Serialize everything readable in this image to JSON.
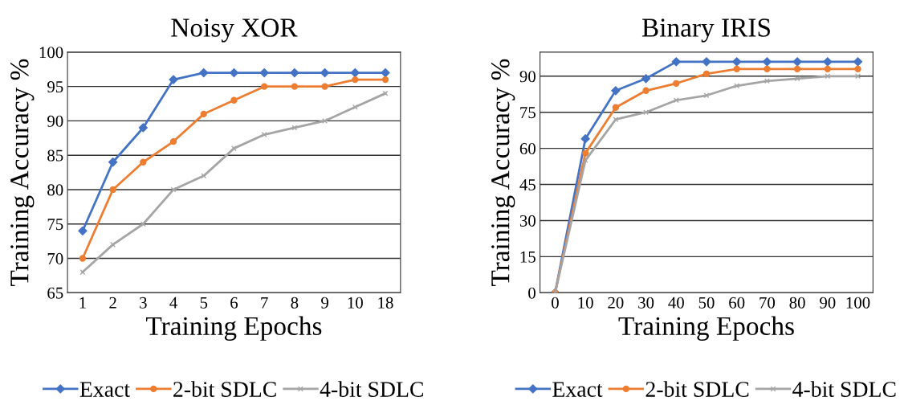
{
  "chart_data": [
    {
      "type": "line",
      "title": "Noisy XOR",
      "xlabel": "Training Epochs",
      "ylabel": "Training Accuracy %",
      "categories": [
        "1",
        "2",
        "3",
        "4",
        "5",
        "6",
        "7",
        "8",
        "9",
        "10",
        "18"
      ],
      "ylim": [
        65,
        100
      ],
      "yticks": [
        65,
        70,
        75,
        80,
        85,
        90,
        95,
        100
      ],
      "grid": "y",
      "legend": "bottom",
      "series": [
        {
          "name": "Exact",
          "color": "#4472c4",
          "marker": "diamond",
          "values": [
            74,
            84,
            89,
            96,
            97,
            97,
            97,
            97,
            97,
            97,
            97
          ]
        },
        {
          "name": "2-bit SDLC",
          "color": "#ed7d31",
          "marker": "circle",
          "values": [
            70,
            80,
            84,
            87,
            91,
            93,
            95,
            95,
            95,
            96,
            96
          ]
        },
        {
          "name": "4-bit SDLC",
          "color": "#a5a5a5",
          "marker": "cross",
          "values": [
            68,
            72,
            75,
            80,
            82,
            86,
            88,
            89,
            90,
            92,
            94
          ]
        }
      ]
    },
    {
      "type": "line",
      "title": "Binary IRIS",
      "xlabel": "Training Epochs",
      "ylabel": "Training Accuracy %",
      "categories": [
        "0",
        "10",
        "20",
        "30",
        "40",
        "50",
        "60",
        "70",
        "80",
        "90",
        "100"
      ],
      "ylim": [
        0,
        100
      ],
      "yticks": [
        0,
        15,
        30,
        45,
        60,
        75,
        90
      ],
      "grid": "y",
      "legend": "bottom",
      "series": [
        {
          "name": "Exact",
          "color": "#4472c4",
          "marker": "diamond",
          "values": [
            0,
            64,
            84,
            89,
            96,
            96,
            96,
            96,
            96,
            96,
            96
          ]
        },
        {
          "name": "2-bit SDLC",
          "color": "#ed7d31",
          "marker": "circle",
          "values": [
            0,
            58,
            77,
            84,
            87,
            91,
            93,
            93,
            93,
            93,
            93
          ]
        },
        {
          "name": "4-bit SDLC",
          "color": "#a5a5a5",
          "marker": "cross",
          "values": [
            0,
            55,
            72,
            75,
            80,
            82,
            86,
            88,
            89,
            90,
            90
          ]
        }
      ]
    }
  ]
}
